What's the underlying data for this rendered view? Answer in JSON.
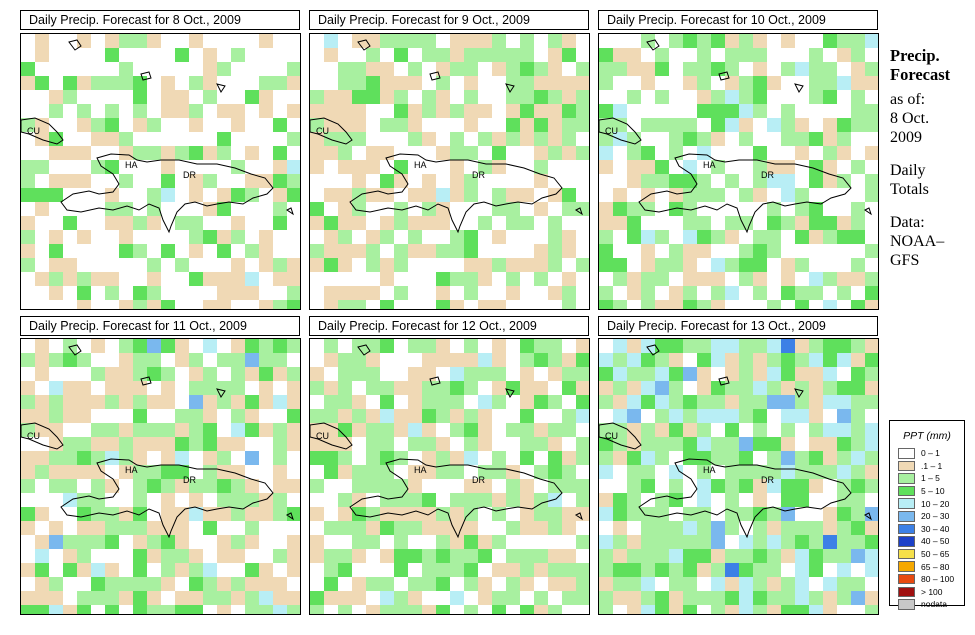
{
  "panels": [
    {
      "title": "Daily Precip. Forecast for  8 Oct., 2009"
    },
    {
      "title": "Daily Precip. Forecast for  9 Oct., 2009"
    },
    {
      "title": "Daily Precip. Forecast for  10 Oct., 2009"
    },
    {
      "title": "Daily Precip. Forecast for  11 Oct., 2009"
    },
    {
      "title": "Daily Precip. Forecast for  12 Oct., 2009"
    },
    {
      "title": "Daily Precip. Forecast for  13 Oct., 2009"
    }
  ],
  "map_labels": {
    "cu": "CU",
    "ha": "HA",
    "dr": "DR"
  },
  "side": {
    "heading1": "Precip.",
    "heading2": "Forecast",
    "asof": "as of:",
    "date1": "8 Oct.",
    "date2": "2009",
    "totals1": "Daily",
    "totals2": "Totals",
    "data1": "Data:",
    "data2": "NOAA–",
    "data3": "GFS"
  },
  "legend": {
    "title": "PPT (mm)",
    "items": [
      {
        "label": "0 – 1",
        "color": "#ffffff"
      },
      {
        "label": ".1 – 1",
        "color": "#f0d9b5"
      },
      {
        "label": "1 – 5",
        "color": "#a8f0a0"
      },
      {
        "label": "5 – 10",
        "color": "#5fe05c"
      },
      {
        "label": "10 – 20",
        "color": "#b8eef5"
      },
      {
        "label": "20 – 30",
        "color": "#7ab8ee"
      },
      {
        "label": "30 – 40",
        "color": "#3c80e6"
      },
      {
        "label": "40 – 50",
        "color": "#1c40c8"
      },
      {
        "label": "50 – 65",
        "color": "#f5e04a"
      },
      {
        "label": "65 – 80",
        "color": "#f5a800"
      },
      {
        "label": "80 – 100",
        "color": "#e84a10"
      },
      {
        "label": "> 100",
        "color": "#a01010"
      },
      {
        "label": "nodata",
        "color": "#c8c8c8"
      }
    ]
  }
}
